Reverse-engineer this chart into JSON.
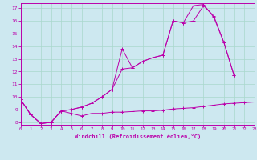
{
  "xlabel": "Windchill (Refroidissement éolien,°C)",
  "background_color": "#cde8f0",
  "grid_color": "#a8d8cc",
  "line_color": "#bb00aa",
  "x_ticks": [
    0,
    1,
    2,
    3,
    4,
    5,
    6,
    7,
    8,
    9,
    10,
    11,
    12,
    13,
    14,
    15,
    16,
    17,
    18,
    19,
    20,
    21,
    22,
    23
  ],
  "y_ticks": [
    8,
    9,
    10,
    11,
    12,
    13,
    14,
    15,
    16,
    17
  ],
  "xlim": [
    0,
    23
  ],
  "ylim": [
    7.8,
    17.4
  ],
  "line1_x": [
    0,
    1,
    2,
    3,
    4,
    5,
    6,
    7,
    8,
    9,
    10,
    11,
    12,
    13,
    14,
    15,
    16,
    17,
    18,
    19,
    20,
    21,
    22,
    23
  ],
  "line1_y": [
    9.8,
    8.6,
    7.9,
    8.0,
    8.9,
    8.7,
    8.5,
    8.7,
    8.7,
    8.8,
    8.8,
    8.85,
    8.9,
    8.9,
    8.95,
    9.05,
    9.1,
    9.15,
    9.25,
    9.35,
    9.45,
    9.5,
    9.55,
    9.6
  ],
  "line2_x": [
    0,
    1,
    2,
    3,
    4,
    5,
    6,
    7,
    8,
    9,
    10,
    11,
    12,
    13,
    14,
    15,
    16,
    17,
    18,
    19,
    20,
    21
  ],
  "line2_y": [
    9.8,
    8.6,
    7.9,
    8.0,
    8.9,
    9.0,
    9.2,
    9.5,
    10.0,
    10.6,
    13.8,
    12.3,
    12.8,
    13.1,
    13.3,
    16.0,
    15.85,
    17.2,
    17.3,
    16.3,
    14.3,
    11.7
  ],
  "line3_x": [
    0,
    1,
    2,
    3,
    4,
    5,
    6,
    7,
    8,
    9,
    10,
    11,
    12,
    13,
    14,
    15,
    16,
    17,
    18,
    19,
    20,
    21
  ],
  "line3_y": [
    9.8,
    8.6,
    7.9,
    8.0,
    8.9,
    9.0,
    9.2,
    9.5,
    10.0,
    10.6,
    12.2,
    12.3,
    12.8,
    13.1,
    13.3,
    16.0,
    15.85,
    16.0,
    17.2,
    16.4,
    14.3,
    11.7
  ]
}
